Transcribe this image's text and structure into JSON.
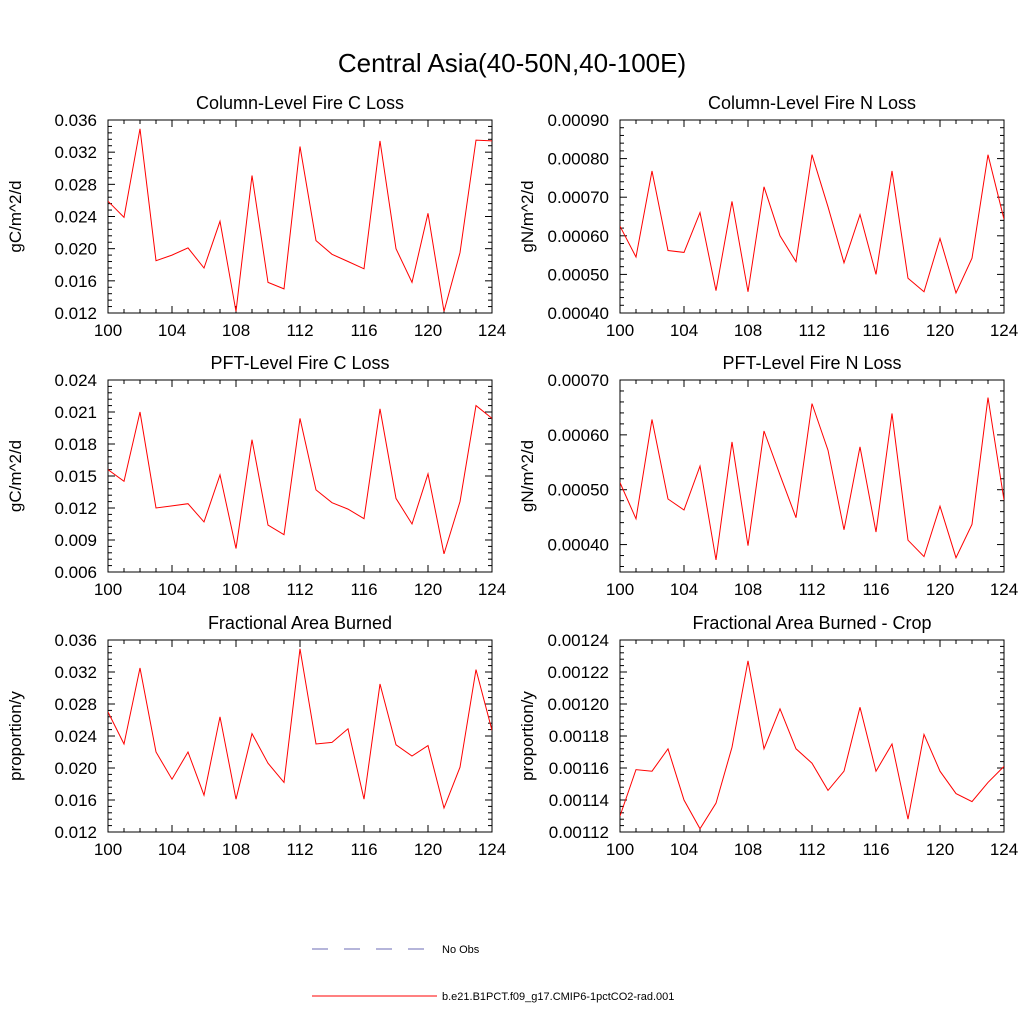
{
  "figure": {
    "title": "Central Asia(40-50N,40-100E)"
  },
  "legend": {
    "entries": [
      {
        "label": "No Obs",
        "color": "#6b6bb5",
        "style": "dashed"
      },
      {
        "label": "b.e21.B1PCT.f09_g17.CMIP6-1pctCO2-rad.001",
        "color": "#ff0000",
        "style": "solid"
      }
    ]
  },
  "chart_data": [
    {
      "type": "line",
      "title": "Column-Level Fire C Loss",
      "ylabel": "gC/m^2/d",
      "xlim": [
        100,
        124
      ],
      "ylim": [
        0.012,
        0.036
      ],
      "xticks": [
        100,
        104,
        108,
        112,
        116,
        120,
        124
      ],
      "yticks": [
        0.012,
        0.016,
        0.02,
        0.024,
        0.028,
        0.032,
        0.036
      ],
      "ytick_labels": [
        "0.012",
        "0.016",
        "0.020",
        "0.024",
        "0.028",
        "0.032",
        "0.036"
      ],
      "x": [
        100,
        101,
        102,
        103,
        104,
        105,
        106,
        107,
        108,
        109,
        110,
        111,
        112,
        113,
        114,
        115,
        116,
        117,
        118,
        119,
        120,
        121,
        122,
        123,
        124
      ],
      "series": [
        {
          "name": "b.e21.B1PCT.f09_g17.CMIP6-1pctCO2-rad.001",
          "color": "#ff0000",
          "values": [
            0.0259,
            0.0239,
            0.0349,
            0.0185,
            0.0192,
            0.0201,
            0.0176,
            0.0234,
            0.0122,
            0.0291,
            0.0158,
            0.015,
            0.0327,
            0.021,
            0.0193,
            0.0184,
            0.0175,
            0.0334,
            0.02,
            0.0158,
            0.0244,
            0.0122,
            0.0195,
            0.0335,
            0.0334
          ]
        }
      ]
    },
    {
      "type": "line",
      "title": "Column-Level Fire N Loss",
      "ylabel": "gN/m^2/d",
      "xlim": [
        100,
        124
      ],
      "ylim": [
        0.0004,
        0.0009
      ],
      "xticks": [
        100,
        104,
        108,
        112,
        116,
        120,
        124
      ],
      "yticks": [
        0.0004,
        0.0005,
        0.0006,
        0.0007,
        0.0008,
        0.0009
      ],
      "ytick_labels": [
        "0.00040",
        "0.00050",
        "0.00060",
        "0.00070",
        "0.00080",
        "0.00090"
      ],
      "x": [
        100,
        101,
        102,
        103,
        104,
        105,
        106,
        107,
        108,
        109,
        110,
        111,
        112,
        113,
        114,
        115,
        116,
        117,
        118,
        119,
        120,
        121,
        122,
        123,
        124
      ],
      "series": [
        {
          "name": "b.e21.B1PCT.f09_g17.CMIP6-1pctCO2-rad.001",
          "color": "#ff0000",
          "values": [
            0.000625,
            0.000545,
            0.000768,
            0.000562,
            0.000557,
            0.00066,
            0.000458,
            0.000689,
            0.000455,
            0.000727,
            0.0006,
            0.000533,
            0.00081,
            0.000675,
            0.00053,
            0.000655,
            0.0005,
            0.000768,
            0.00049,
            0.000455,
            0.000593,
            0.000452,
            0.000542,
            0.00081,
            0.000643
          ]
        }
      ]
    },
    {
      "type": "line",
      "title": "PFT-Level Fire C Loss",
      "ylabel": "gC/m^2/d",
      "xlim": [
        100,
        124
      ],
      "ylim": [
        0.006,
        0.024
      ],
      "xticks": [
        100,
        104,
        108,
        112,
        116,
        120,
        124
      ],
      "yticks": [
        0.006,
        0.009,
        0.012,
        0.015,
        0.018,
        0.021,
        0.024
      ],
      "ytick_labels": [
        "0.006",
        "0.009",
        "0.012",
        "0.015",
        "0.018",
        "0.021",
        "0.024"
      ],
      "x": [
        100,
        101,
        102,
        103,
        104,
        105,
        106,
        107,
        108,
        109,
        110,
        111,
        112,
        113,
        114,
        115,
        116,
        117,
        118,
        119,
        120,
        121,
        122,
        123,
        124
      ],
      "series": [
        {
          "name": "b.e21.B1PCT.f09_g17.CMIP6-1pctCO2-rad.001",
          "color": "#ff0000",
          "values": [
            0.0156,
            0.0145,
            0.021,
            0.012,
            0.0122,
            0.0124,
            0.0107,
            0.0151,
            0.0082,
            0.0184,
            0.0104,
            0.0095,
            0.0204,
            0.0137,
            0.0125,
            0.0119,
            0.011,
            0.0213,
            0.0129,
            0.0105,
            0.0152,
            0.0077,
            0.0126,
            0.0216,
            0.0204
          ]
        }
      ]
    },
    {
      "type": "line",
      "title": "PFT-Level Fire N Loss",
      "ylabel": "gN/m^2/d",
      "xlim": [
        100,
        124
      ],
      "ylim": [
        0.00035,
        0.0007
      ],
      "xticks": [
        100,
        104,
        108,
        112,
        116,
        120,
        124
      ],
      "yticks": [
        0.0004,
        0.0005,
        0.0006,
        0.0007
      ],
      "ytick_labels": [
        "0.00040",
        "0.00050",
        "0.00060",
        "0.00070"
      ],
      "x": [
        100,
        101,
        102,
        103,
        104,
        105,
        106,
        107,
        108,
        109,
        110,
        111,
        112,
        113,
        114,
        115,
        116,
        117,
        118,
        119,
        120,
        121,
        122,
        123,
        124
      ],
      "series": [
        {
          "name": "b.e21.B1PCT.f09_g17.CMIP6-1pctCO2-rad.001",
          "color": "#ff0000",
          "values": [
            0.000513,
            0.000447,
            0.000628,
            0.000483,
            0.000463,
            0.000543,
            0.000372,
            0.000587,
            0.000398,
            0.000607,
            0.000527,
            0.000449,
            0.000657,
            0.000572,
            0.000427,
            0.000578,
            0.000423,
            0.000639,
            0.000408,
            0.000378,
            0.00047,
            0.000376,
            0.000437,
            0.000668,
            0.000481
          ]
        }
      ]
    },
    {
      "type": "line",
      "title": "Fractional Area Burned",
      "ylabel": "proportion/y",
      "xlim": [
        100,
        124
      ],
      "ylim": [
        0.012,
        0.036
      ],
      "xticks": [
        100,
        104,
        108,
        112,
        116,
        120,
        124
      ],
      "yticks": [
        0.012,
        0.016,
        0.02,
        0.024,
        0.028,
        0.032,
        0.036
      ],
      "ytick_labels": [
        "0.012",
        "0.016",
        "0.020",
        "0.024",
        "0.028",
        "0.032",
        "0.036"
      ],
      "x": [
        100,
        101,
        102,
        103,
        104,
        105,
        106,
        107,
        108,
        109,
        110,
        111,
        112,
        113,
        114,
        115,
        116,
        117,
        118,
        119,
        120,
        121,
        122,
        123,
        124
      ],
      "series": [
        {
          "name": "b.e21.B1PCT.f09_g17.CMIP6-1pctCO2-rad.001",
          "color": "#ff0000",
          "values": [
            0.027,
            0.023,
            0.0325,
            0.022,
            0.0186,
            0.022,
            0.0166,
            0.0264,
            0.0161,
            0.0243,
            0.0206,
            0.0182,
            0.0349,
            0.023,
            0.0232,
            0.0249,
            0.0161,
            0.0305,
            0.0229,
            0.0215,
            0.0228,
            0.015,
            0.0201,
            0.0323,
            0.0247
          ]
        }
      ]
    },
    {
      "type": "line",
      "title": "Fractional Area Burned - Crop",
      "ylabel": "proportion/y",
      "xlim": [
        100,
        124
      ],
      "ylim": [
        0.00112,
        0.00124
      ],
      "xticks": [
        100,
        104,
        108,
        112,
        116,
        120,
        124
      ],
      "yticks": [
        0.00112,
        0.00114,
        0.00116,
        0.00118,
        0.0012,
        0.00122,
        0.00124
      ],
      "ytick_labels": [
        "0.00112",
        "0.00114",
        "0.00116",
        "0.00118",
        "0.00120",
        "0.00122",
        "0.00124"
      ],
      "x": [
        100,
        101,
        102,
        103,
        104,
        105,
        106,
        107,
        108,
        109,
        110,
        111,
        112,
        113,
        114,
        115,
        116,
        117,
        118,
        119,
        120,
        121,
        122,
        123,
        124
      ],
      "series": [
        {
          "name": "b.e21.B1PCT.f09_g17.CMIP6-1pctCO2-rad.001",
          "color": "#ff0000",
          "values": [
            0.00113,
            0.001159,
            0.001158,
            0.001172,
            0.00114,
            0.001122,
            0.001138,
            0.001173,
            0.001227,
            0.001172,
            0.001197,
            0.001172,
            0.001163,
            0.001146,
            0.001158,
            0.001198,
            0.001158,
            0.001175,
            0.001128,
            0.001181,
            0.001158,
            0.001144,
            0.001139,
            0.001151,
            0.001161
          ]
        }
      ]
    }
  ]
}
